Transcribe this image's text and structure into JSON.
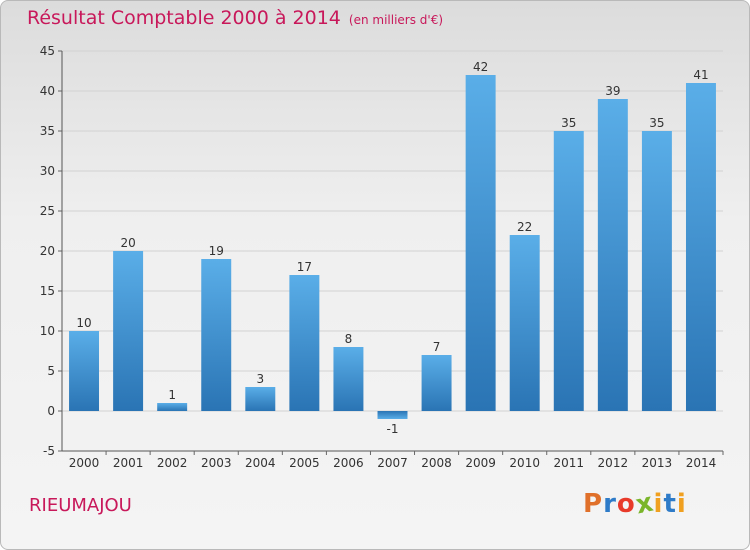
{
  "header": {
    "title": "Résultat Comptable 2000 à 2014",
    "subtitle": "(en milliers d'€)"
  },
  "footer": {
    "commune": "RIEUMAJOU",
    "brand": "Proxiti",
    "brand_letters": [
      "P",
      "r",
      "o",
      "x",
      "i",
      "t",
      "i"
    ],
    "brand_colors": [
      "#e0702a",
      "#2e7bc8",
      "#e83a2a",
      "#7ab52a",
      "#f0a020",
      "#2e7bc8",
      "#f0a020"
    ]
  },
  "chart_data": {
    "type": "bar",
    "title": "Résultat Comptable 2000 à 2014",
    "subtitle": "(en milliers d'€)",
    "xlabel": "",
    "ylabel": "",
    "categories": [
      "2000",
      "2001",
      "2002",
      "2003",
      "2004",
      "2005",
      "2006",
      "2007",
      "2008",
      "2009",
      "2010",
      "2011",
      "2012",
      "2013",
      "2014"
    ],
    "values": [
      10,
      20,
      1,
      19,
      3,
      17,
      8,
      -1,
      7,
      42,
      22,
      35,
      39,
      35,
      41
    ],
    "ylim": [
      -5,
      45
    ],
    "yticks": [
      -5,
      0,
      5,
      10,
      15,
      20,
      25,
      30,
      35,
      40,
      45
    ],
    "grid": "horizontal",
    "bar_color": "#3f96d8",
    "bar_color_dark": "#2a74b4"
  }
}
